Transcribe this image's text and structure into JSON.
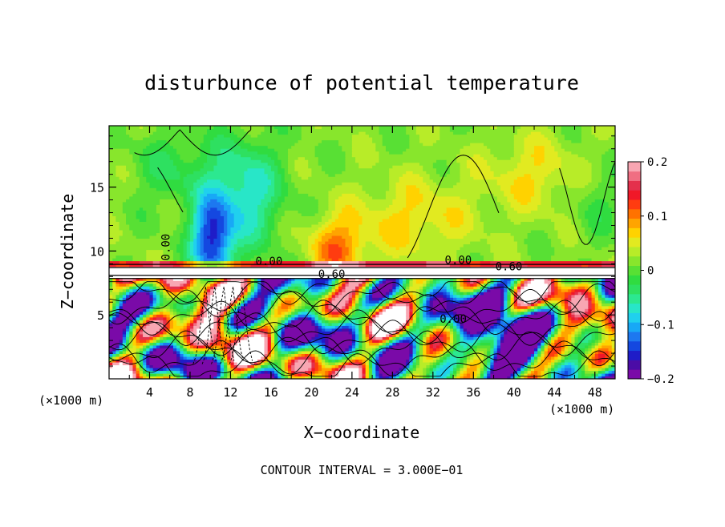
{
  "chart_data": {
    "type": "heatmap",
    "title": "disturbunce of potential temperature",
    "xlabel": "X−coordinate",
    "ylabel": "Z−coordinate",
    "x_unit_label": "(×1000 m)",
    "y_unit_label": "(×1000 m)",
    "footer": "CONTOUR INTERVAL = 3.000E−01",
    "xlim": [
      0,
      50
    ],
    "ylim": [
      0,
      19.8
    ],
    "x_ticks": [
      4,
      8,
      12,
      16,
      20,
      24,
      28,
      32,
      36,
      40,
      44,
      48
    ],
    "x_tick_labels": [
      "4",
      "8",
      "12",
      "16",
      "20",
      "24",
      "28",
      "32",
      "36",
      "40",
      "44",
      "48"
    ],
    "y_ticks": [
      5,
      10,
      15
    ],
    "y_tick_labels": [
      "5",
      "10",
      "15"
    ],
    "colorbar": {
      "range": [
        -0.2,
        0.2
      ],
      "tick_values": [
        0.2,
        0.1,
        0,
        -0.1,
        -0.2
      ],
      "tick_labels": [
        "0.2",
        "0.1",
        "0",
        "−0.1",
        "−0.2"
      ],
      "colors": [
        "#7a0aa8",
        "#4b0ca6",
        "#1f1cc8",
        "#1448e0",
        "#1d78f0",
        "#18a8f6",
        "#20d0ee",
        "#28e6c8",
        "#2ce890",
        "#2ee060",
        "#30dc40",
        "#58e034",
        "#88e62c",
        "#b8ec28",
        "#e2ea20",
        "#ffd200",
        "#ffa400",
        "#ff7200",
        "#ff3c10",
        "#f01828",
        "#e4304c",
        "#f06e82",
        "#f8a6b2"
      ]
    },
    "contour_labels": [
      {
        "x": 6.0,
        "z": 10.3,
        "text": "0.00",
        "rotated": true
      },
      {
        "x": 15.8,
        "z": 8.9,
        "text": "0.00"
      },
      {
        "x": 22.0,
        "z": 7.9,
        "text": "0.60"
      },
      {
        "x": 34.5,
        "z": 9.0,
        "text": "0.00"
      },
      {
        "x": 39.5,
        "z": 8.5,
        "text": "0.60"
      },
      {
        "x": 34.0,
        "z": 4.4,
        "text": "0.00"
      }
    ]
  },
  "colors": {
    "background": "#ffffff",
    "axis": "#000000"
  }
}
